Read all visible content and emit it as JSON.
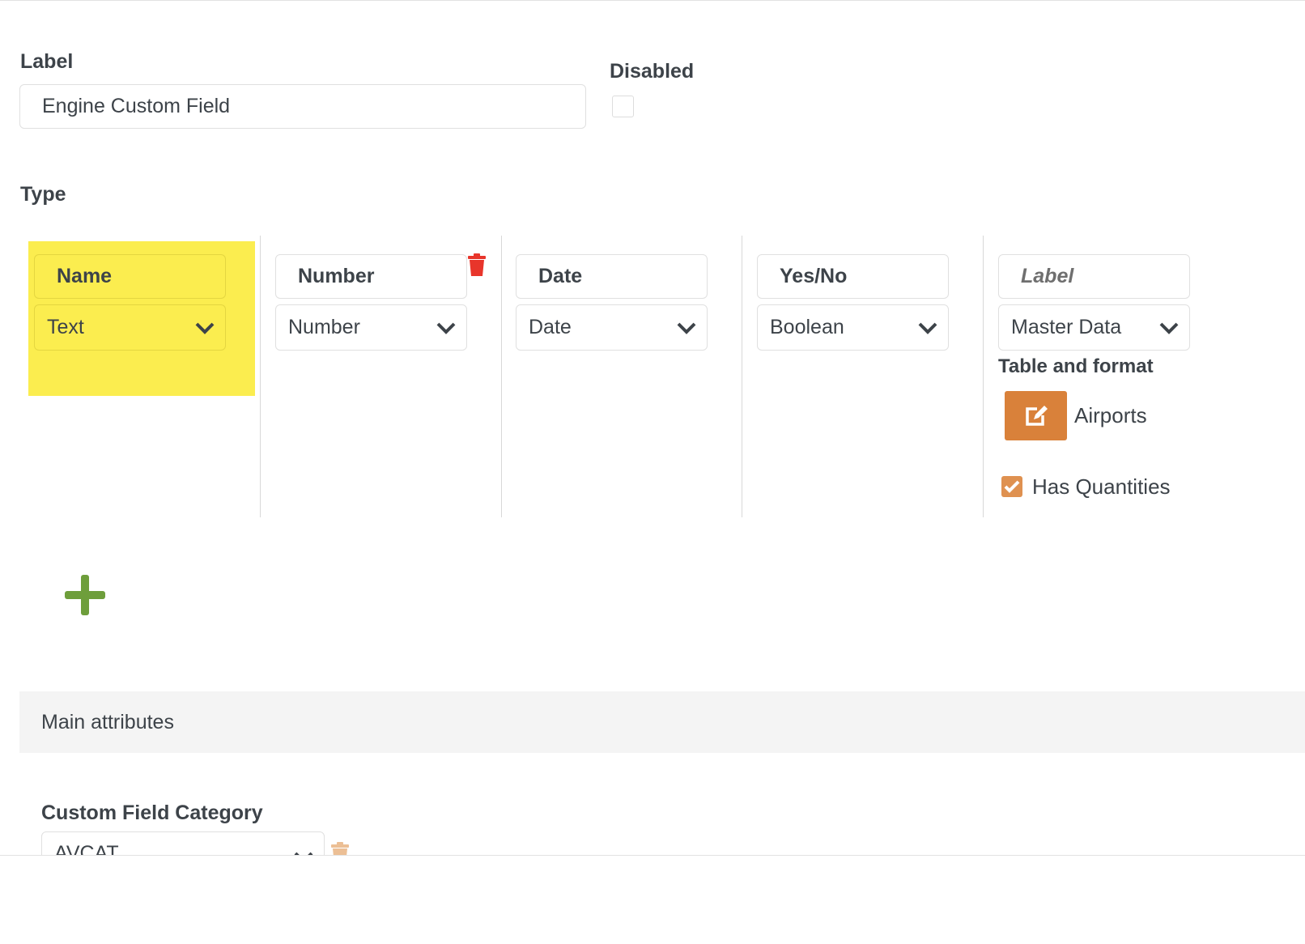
{
  "label_field": {
    "label": "Label",
    "value": "Engine Custom Field"
  },
  "disabled": {
    "label": "Disabled",
    "checked": false
  },
  "type": {
    "label": "Type",
    "columns": [
      {
        "name": "Name",
        "type": "Text",
        "highlighted": true
      },
      {
        "name": "Number",
        "type": "Number",
        "deletable": true
      },
      {
        "name": "Date",
        "type": "Date"
      },
      {
        "name": "Yes/No",
        "type": "Boolean"
      },
      {
        "name": "",
        "placeholder": "Label",
        "type": "Master Data",
        "table_format_label": "Table and format",
        "table_value": "Airports",
        "has_quantities_label": "Has Quantities",
        "has_quantities": true
      }
    ],
    "add_icon": "plus-icon"
  },
  "section": {
    "title": "Main attributes"
  },
  "category": {
    "label": "Custom Field Category",
    "value": "AVCAT"
  },
  "colors": {
    "highlight": "#fbed4f",
    "accent": "#d9813a",
    "delete": "#e8352b",
    "add": "#6e9e3b"
  }
}
